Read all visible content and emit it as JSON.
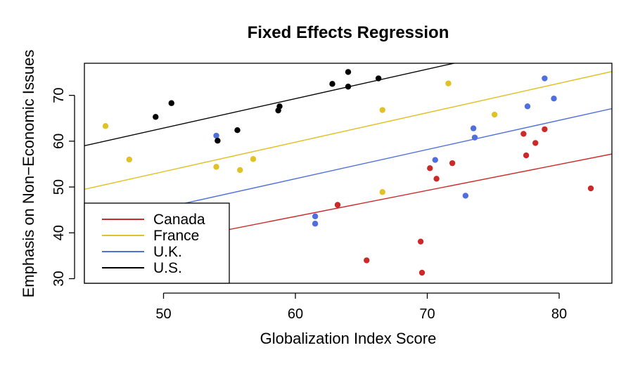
{
  "chart_data": {
    "type": "scatter",
    "title": "Fixed Effects Regression",
    "xlabel": "Globalization Index Score",
    "ylabel": "Emphasis on Non−Economic Issues",
    "xlim": [
      44,
      84
    ],
    "ylim": [
      29,
      77
    ],
    "xticks": [
      50,
      60,
      70,
      80
    ],
    "yticks": [
      30,
      40,
      50,
      60,
      70
    ],
    "legend_position": "bottom-left",
    "grid": false,
    "series": [
      {
        "name": "Canada",
        "color": "#cc2a2a",
        "regression_line": {
          "x": [
            44,
            84
          ],
          "y": [
            34.5,
            57.2
          ]
        },
        "points": [
          [
            63.2,
            46.1
          ],
          [
            65.4,
            34.0
          ],
          [
            69.5,
            38.1
          ],
          [
            69.6,
            31.3
          ],
          [
            70.2,
            54.1
          ],
          [
            70.7,
            51.8
          ],
          [
            71.9,
            55.2
          ],
          [
            77.3,
            61.6
          ],
          [
            77.5,
            56.9
          ],
          [
            78.2,
            59.6
          ],
          [
            78.9,
            62.6
          ],
          [
            82.4,
            49.7
          ]
        ]
      },
      {
        "name": "France",
        "color": "#e0c126",
        "regression_line": {
          "x": [
            44,
            84
          ],
          "y": [
            49.5,
            75.2
          ]
        },
        "points": [
          [
            45.6,
            63.3
          ],
          [
            47.4,
            56.0
          ],
          [
            54.0,
            54.4
          ],
          [
            55.8,
            53.7
          ],
          [
            56.8,
            56.1
          ],
          [
            66.6,
            66.8
          ],
          [
            66.6,
            48.9
          ],
          [
            71.6,
            72.6
          ],
          [
            75.1,
            65.8
          ]
        ]
      },
      {
        "name": "U.K.",
        "color": "#4f6fde",
        "regression_line": {
          "x": [
            44,
            84
          ],
          "y": [
            41.6,
            67.1
          ]
        },
        "points": [
          [
            54.0,
            61.2
          ],
          [
            61.5,
            43.6
          ],
          [
            61.5,
            42.0
          ],
          [
            70.6,
            55.9
          ],
          [
            72.9,
            48.1
          ],
          [
            73.5,
            62.8
          ],
          [
            73.6,
            60.8
          ],
          [
            77.6,
            67.6
          ],
          [
            78.9,
            73.7
          ],
          [
            79.6,
            69.3
          ]
        ]
      },
      {
        "name": "U.S.",
        "color": "#000000",
        "regression_line": {
          "x": [
            44,
            84
          ],
          "y": [
            59.0,
            84.7
          ]
        },
        "points": [
          [
            49.4,
            65.3
          ],
          [
            50.6,
            68.3
          ],
          [
            54.1,
            60.1
          ],
          [
            55.6,
            62.4
          ],
          [
            58.8,
            67.6
          ],
          [
            58.7,
            66.7
          ],
          [
            62.8,
            72.5
          ],
          [
            64.0,
            75.1
          ],
          [
            64.0,
            71.9
          ],
          [
            66.3,
            73.7
          ]
        ]
      }
    ]
  }
}
